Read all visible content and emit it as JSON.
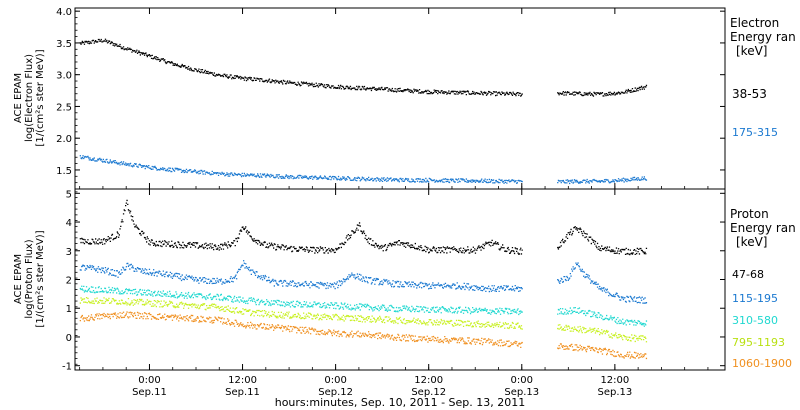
{
  "chart_data": {
    "type": "scatter",
    "xlabel": "hours:minutes, Sep. 10, 2011 - Sep. 13, 2011",
    "x_ticks": [
      {
        "t": 6,
        "time": "0:00",
        "date": "Sep.11"
      },
      {
        "t": 18,
        "time": "12:00",
        "date": "Sep.11"
      },
      {
        "t": 30,
        "time": "0:00",
        "date": "Sep.12"
      },
      {
        "t": 42,
        "time": "12:00",
        "date": "Sep.12"
      },
      {
        "t": 54,
        "time": "0:00",
        "date": "Sep.13"
      },
      {
        "t": 66,
        "time": "12:00",
        "date": "Sep.13"
      }
    ],
    "xlim_hours": [
      -3.6,
      80.2
    ],
    "data_gap_hours": [
      54.0,
      58.5
    ],
    "panels": [
      {
        "id": "electron",
        "ylabel_lines": [
          "ACE EPAM",
          "log(Electron Flux)",
          "[1/(cm²s ster MeV)]"
        ],
        "ylim": [
          1.2,
          4.05
        ],
        "y_ticks": [
          "1.5",
          "2.0",
          "2.5",
          "3.0",
          "3.5",
          "4.0"
        ],
        "y_tick_values": [
          1.5,
          2.0,
          2.5,
          3.0,
          3.5,
          4.0
        ],
        "legend_title": [
          "Electron",
          "Energy ran"
        ],
        "legend_units": "[keV]",
        "series": [
          {
            "name": "38-53",
            "color": "#000000",
            "points": [
              [
                -3,
                3.5
              ],
              [
                0,
                3.55
              ],
              [
                3,
                3.42
              ],
              [
                6,
                3.3
              ],
              [
                9,
                3.18
              ],
              [
                12,
                3.08
              ],
              [
                15,
                3.0
              ],
              [
                18,
                2.95
              ],
              [
                21,
                2.92
              ],
              [
                24,
                2.88
              ],
              [
                27,
                2.85
              ],
              [
                30,
                2.82
              ],
              [
                33,
                2.8
              ],
              [
                36,
                2.78
              ],
              [
                39,
                2.76
              ],
              [
                42,
                2.74
              ],
              [
                45,
                2.73
              ],
              [
                48,
                2.72
              ],
              [
                51,
                2.71
              ],
              [
                54,
                2.7
              ],
              [
                58.5,
                2.72
              ],
              [
                61,
                2.71
              ],
              [
                64,
                2.7
              ],
              [
                67,
                2.73
              ],
              [
                70,
                2.82
              ]
            ]
          },
          {
            "name": "175-315",
            "color": "#1a78d0",
            "points": [
              [
                -3,
                1.72
              ],
              [
                0,
                1.66
              ],
              [
                3,
                1.6
              ],
              [
                6,
                1.55
              ],
              [
                9,
                1.51
              ],
              [
                12,
                1.48
              ],
              [
                15,
                1.45
              ],
              [
                18,
                1.43
              ],
              [
                21,
                1.42
              ],
              [
                24,
                1.4
              ],
              [
                27,
                1.39
              ],
              [
                30,
                1.38
              ],
              [
                33,
                1.37
              ],
              [
                36,
                1.36
              ],
              [
                39,
                1.35
              ],
              [
                42,
                1.35
              ],
              [
                45,
                1.34
              ],
              [
                48,
                1.34
              ],
              [
                51,
                1.33
              ],
              [
                54,
                1.33
              ],
              [
                58.5,
                1.32
              ],
              [
                61,
                1.33
              ],
              [
                64,
                1.33
              ],
              [
                67,
                1.35
              ],
              [
                70,
                1.38
              ]
            ]
          }
        ]
      },
      {
        "id": "proton",
        "ylabel_lines": [
          "ACE EPAM",
          "log(Proton Flux)",
          "[1/(cm²s ster MeV)]"
        ],
        "ylim": [
          -1.15,
          5.15
        ],
        "y_ticks": [
          "-1",
          "0",
          "1",
          "2",
          "3",
          "4",
          "5"
        ],
        "y_tick_values": [
          -1,
          0,
          1,
          2,
          3,
          4,
          5
        ],
        "legend_title": [
          "Proton",
          "Energy ran"
        ],
        "legend_units": "[keV]",
        "series": [
          {
            "name": "47-68",
            "color": "#000000",
            "points": [
              [
                -3,
                3.35
              ],
              [
                0,
                3.35
              ],
              [
                2,
                3.6
              ],
              [
                3,
                4.7
              ],
              [
                4,
                3.9
              ],
              [
                6,
                3.3
              ],
              [
                9,
                3.25
              ],
              [
                12,
                3.2
              ],
              [
                15,
                3.15
              ],
              [
                17,
                3.3
              ],
              [
                18,
                3.9
              ],
              [
                19,
                3.5
              ],
              [
                21,
                3.2
              ],
              [
                24,
                3.1
              ],
              [
                27,
                3.05
              ],
              [
                30,
                3.05
              ],
              [
                32,
                3.6
              ],
              [
                33,
                3.9
              ],
              [
                34,
                3.4
              ],
              [
                36,
                3.1
              ],
              [
                38,
                3.3
              ],
              [
                40,
                3.2
              ],
              [
                42,
                3.05
              ],
              [
                45,
                3.05
              ],
              [
                48,
                3.05
              ],
              [
                50,
                3.3
              ],
              [
                52,
                3.05
              ],
              [
                54,
                3.0
              ],
              [
                58.5,
                3.1
              ],
              [
                60,
                3.6
              ],
              [
                61,
                3.8
              ],
              [
                62,
                3.6
              ],
              [
                64,
                3.1
              ],
              [
                67,
                3.0
              ],
              [
                70,
                3.0
              ]
            ]
          },
          {
            "name": "115-195",
            "color": "#1a78d0",
            "points": [
              [
                -3,
                2.45
              ],
              [
                0,
                2.35
              ],
              [
                2,
                2.2
              ],
              [
                3,
                2.5
              ],
              [
                5,
                2.3
              ],
              [
                8,
                2.2
              ],
              [
                12,
                2.0
              ],
              [
                15,
                1.95
              ],
              [
                17,
                2.05
              ],
              [
                18,
                2.6
              ],
              [
                19,
                2.3
              ],
              [
                22,
                1.9
              ],
              [
                26,
                1.85
              ],
              [
                30,
                1.8
              ],
              [
                32,
                2.2
              ],
              [
                34,
                2.0
              ],
              [
                38,
                1.85
              ],
              [
                42,
                1.8
              ],
              [
                46,
                1.8
              ],
              [
                50,
                1.7
              ],
              [
                54,
                1.7
              ],
              [
                58.5,
                1.95
              ],
              [
                60,
                2.1
              ],
              [
                61,
                2.6
              ],
              [
                62,
                2.2
              ],
              [
                64,
                1.7
              ],
              [
                67,
                1.35
              ],
              [
                70,
                1.3
              ]
            ]
          },
          {
            "name": "310-580",
            "color": "#20d8d0",
            "points": [
              [
                -3,
                1.7
              ],
              [
                0,
                1.65
              ],
              [
                3,
                1.6
              ],
              [
                6,
                1.55
              ],
              [
                9,
                1.5
              ],
              [
                12,
                1.45
              ],
              [
                15,
                1.4
              ],
              [
                18,
                1.3
              ],
              [
                22,
                1.2
              ],
              [
                26,
                1.15
              ],
              [
                30,
                1.1
              ],
              [
                34,
                1.05
              ],
              [
                38,
                1.0
              ],
              [
                42,
                0.98
              ],
              [
                46,
                0.95
              ],
              [
                50,
                0.92
              ],
              [
                54,
                0.9
              ],
              [
                58.5,
                0.9
              ],
              [
                61,
                0.95
              ],
              [
                64,
                0.75
              ],
              [
                67,
                0.55
              ],
              [
                70,
                0.5
              ]
            ]
          },
          {
            "name": "795-1193",
            "color": "#c8f020",
            "points": [
              [
                -3,
                1.3
              ],
              [
                0,
                1.28
              ],
              [
                3,
                1.25
              ],
              [
                6,
                1.2
              ],
              [
                9,
                1.15
              ],
              [
                12,
                1.1
              ],
              [
                15,
                1.05
              ],
              [
                18,
                0.9
              ],
              [
                22,
                0.8
              ],
              [
                26,
                0.75
              ],
              [
                30,
                0.7
              ],
              [
                34,
                0.65
              ],
              [
                38,
                0.6
              ],
              [
                42,
                0.55
              ],
              [
                46,
                0.5
              ],
              [
                50,
                0.45
              ],
              [
                54,
                0.4
              ],
              [
                58.5,
                0.35
              ],
              [
                61,
                0.3
              ],
              [
                64,
                0.2
              ],
              [
                67,
                0.0
              ],
              [
                70,
                -0.05
              ]
            ]
          },
          {
            "name": "1060-1900",
            "color": "#f09020",
            "points": [
              [
                -3,
                0.65
              ],
              [
                0,
                0.75
              ],
              [
                3,
                0.8
              ],
              [
                6,
                0.75
              ],
              [
                9,
                0.7
              ],
              [
                12,
                0.65
              ],
              [
                15,
                0.6
              ],
              [
                18,
                0.45
              ],
              [
                22,
                0.35
              ],
              [
                26,
                0.25
              ],
              [
                30,
                0.15
              ],
              [
                34,
                0.1
              ],
              [
                38,
                0.0
              ],
              [
                42,
                -0.05
              ],
              [
                46,
                -0.1
              ],
              [
                50,
                -0.15
              ],
              [
                54,
                -0.25
              ],
              [
                58.5,
                -0.3
              ],
              [
                61,
                -0.35
              ],
              [
                64,
                -0.45
              ],
              [
                67,
                -0.6
              ],
              [
                70,
                -0.65
              ]
            ]
          }
        ]
      }
    ]
  }
}
